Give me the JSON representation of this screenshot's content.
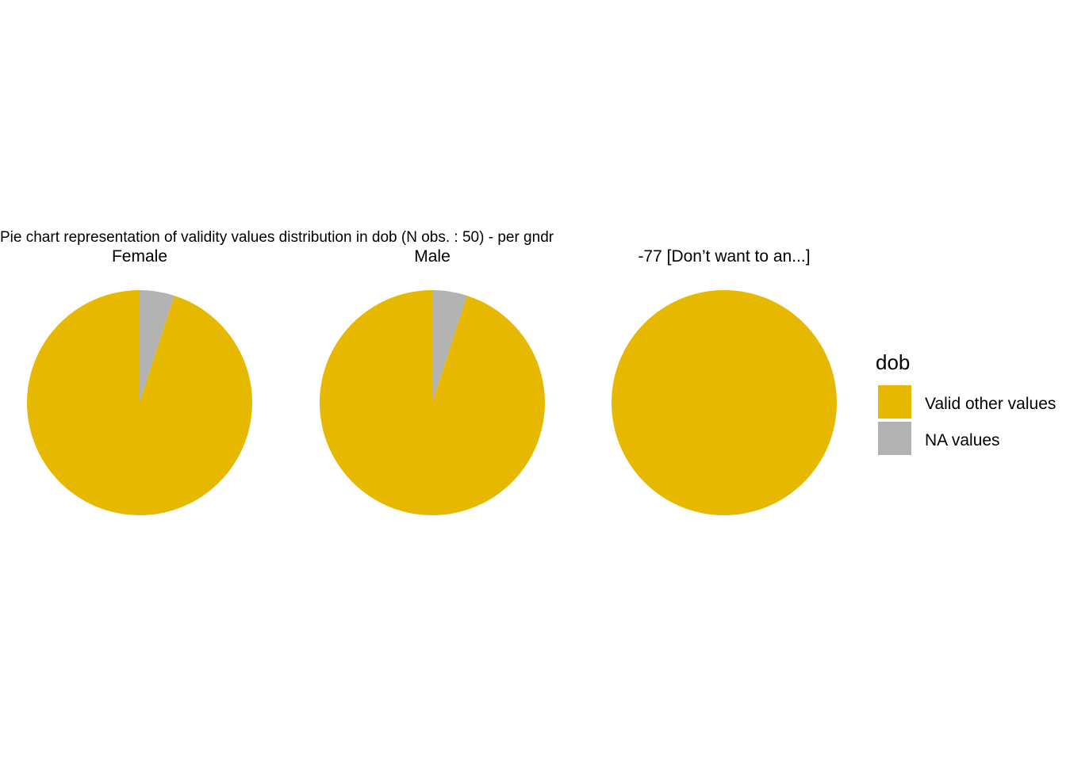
{
  "chart_data": {
    "type": "pie",
    "title": "Pie chart representation of validity values distribution in dob (N obs. : 50) - per gndr",
    "legend": {
      "title": "dob",
      "position": "right",
      "entries": [
        {
          "label": "Valid other values",
          "color": "#E7B800"
        },
        {
          "label": "NA values",
          "color": "#B2B2B2"
        }
      ]
    },
    "facets": [
      {
        "label": "Female",
        "slices": [
          {
            "name": "Valid other values",
            "value": 95
          },
          {
            "name": "NA values",
            "value": 5
          }
        ]
      },
      {
        "label": "Male",
        "slices": [
          {
            "name": "Valid other values",
            "value": 95
          },
          {
            "name": "NA values",
            "value": 5
          }
        ]
      },
      {
        "label": "-77 [Don’t want to an...]",
        "slices": [
          {
            "name": "Valid other values",
            "value": 100
          },
          {
            "name": "NA values",
            "value": 0
          }
        ]
      }
    ]
  }
}
